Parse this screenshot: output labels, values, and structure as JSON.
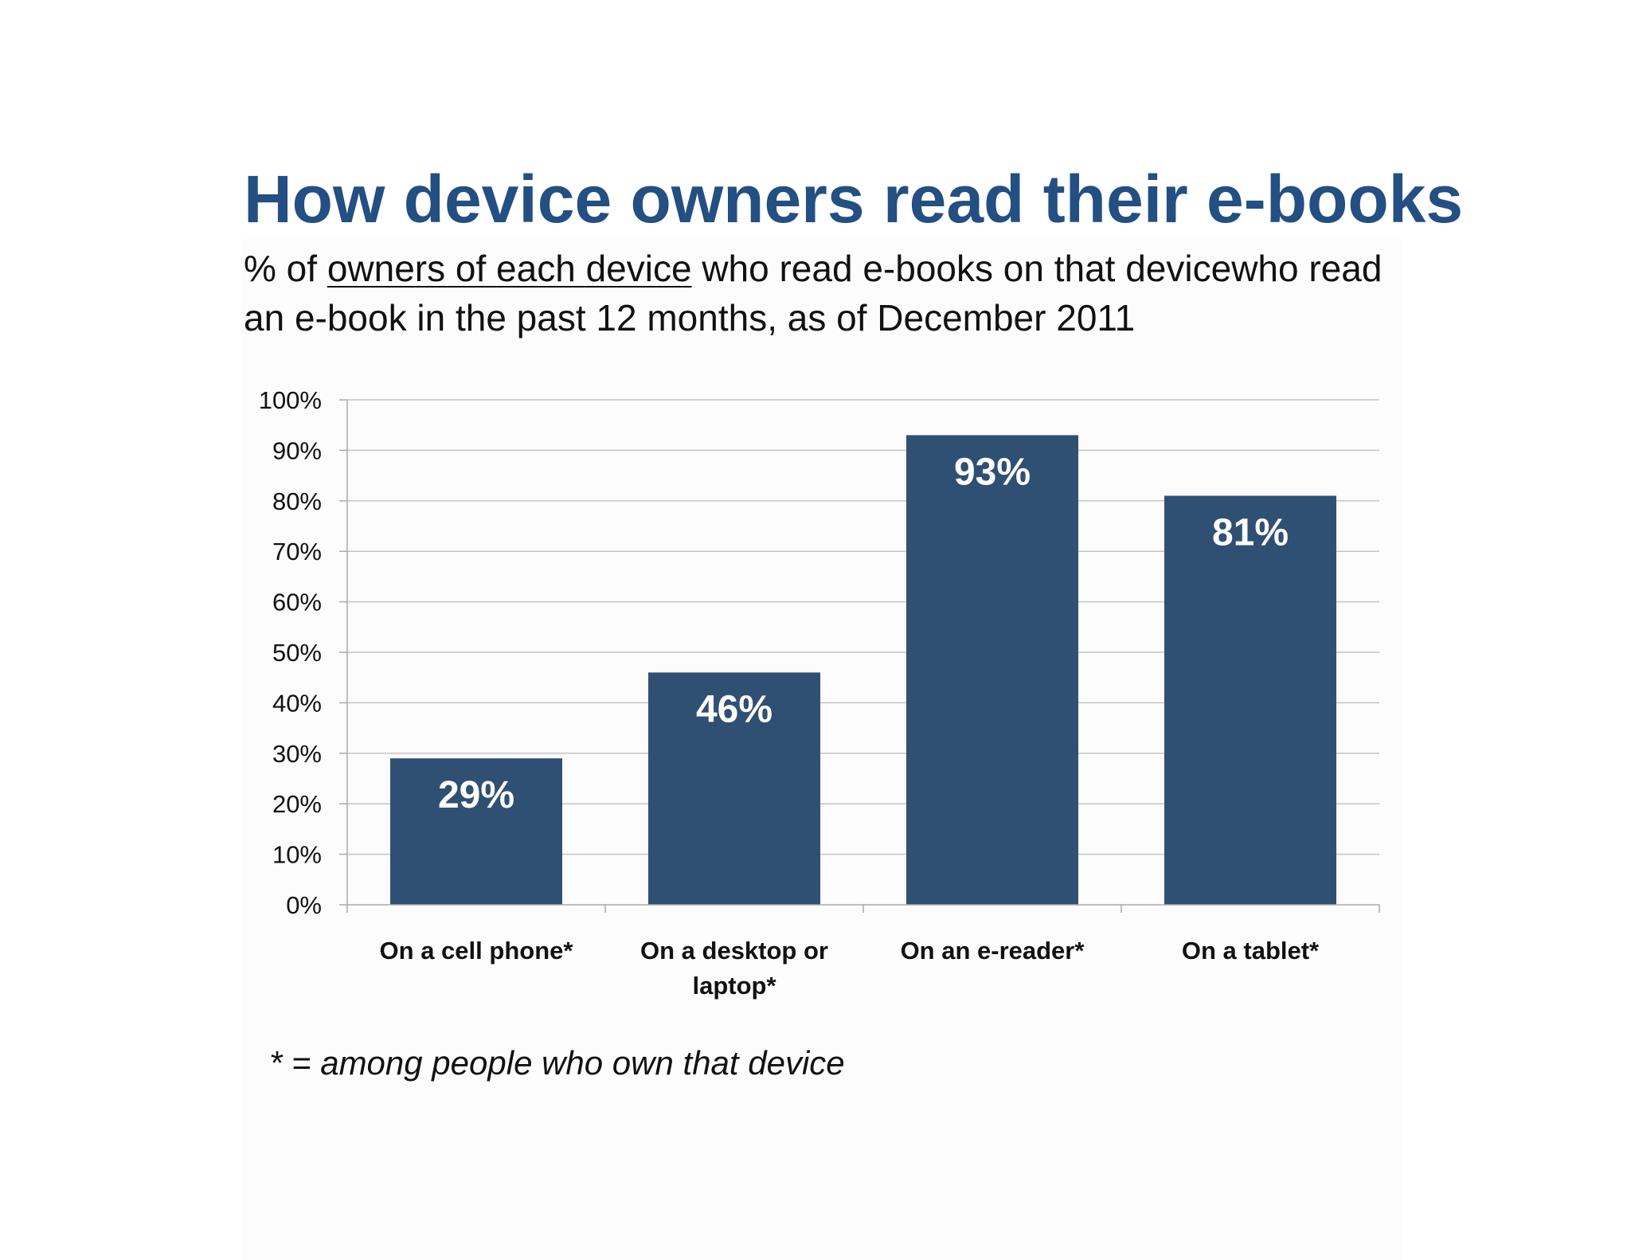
{
  "title": "How device owners read their e-books",
  "subtitle": {
    "prefix": "% of ",
    "underlined": "owners of each device",
    "suffix": " who read e-books on that devicewho read an e-book in the past 12 months, as of December 2011"
  },
  "footnote": "* = among people who own that device",
  "colors": {
    "bar": "#2f5073",
    "title": "#234f82",
    "grid": "#c4c4c4",
    "axis": "#aaaaaa"
  },
  "chart_data": {
    "type": "bar",
    "categories": [
      "On a cell phone*",
      "On a desktop or laptop*",
      "On an e-reader*",
      "On a tablet*"
    ],
    "category_lines": [
      [
        "On a cell phone*"
      ],
      [
        "On a desktop or",
        "laptop*"
      ],
      [
        "On an e-reader*"
      ],
      [
        "On a tablet*"
      ]
    ],
    "values": [
      29,
      46,
      93,
      81
    ],
    "data_labels": [
      "29%",
      "46%",
      "93%",
      "81%"
    ],
    "ylim": [
      0,
      100
    ],
    "yticks": [
      "0%",
      "10%",
      "20%",
      "30%",
      "40%",
      "50%",
      "60%",
      "70%",
      "80%",
      "90%",
      "100%"
    ],
    "grid": true,
    "legend": "none"
  }
}
